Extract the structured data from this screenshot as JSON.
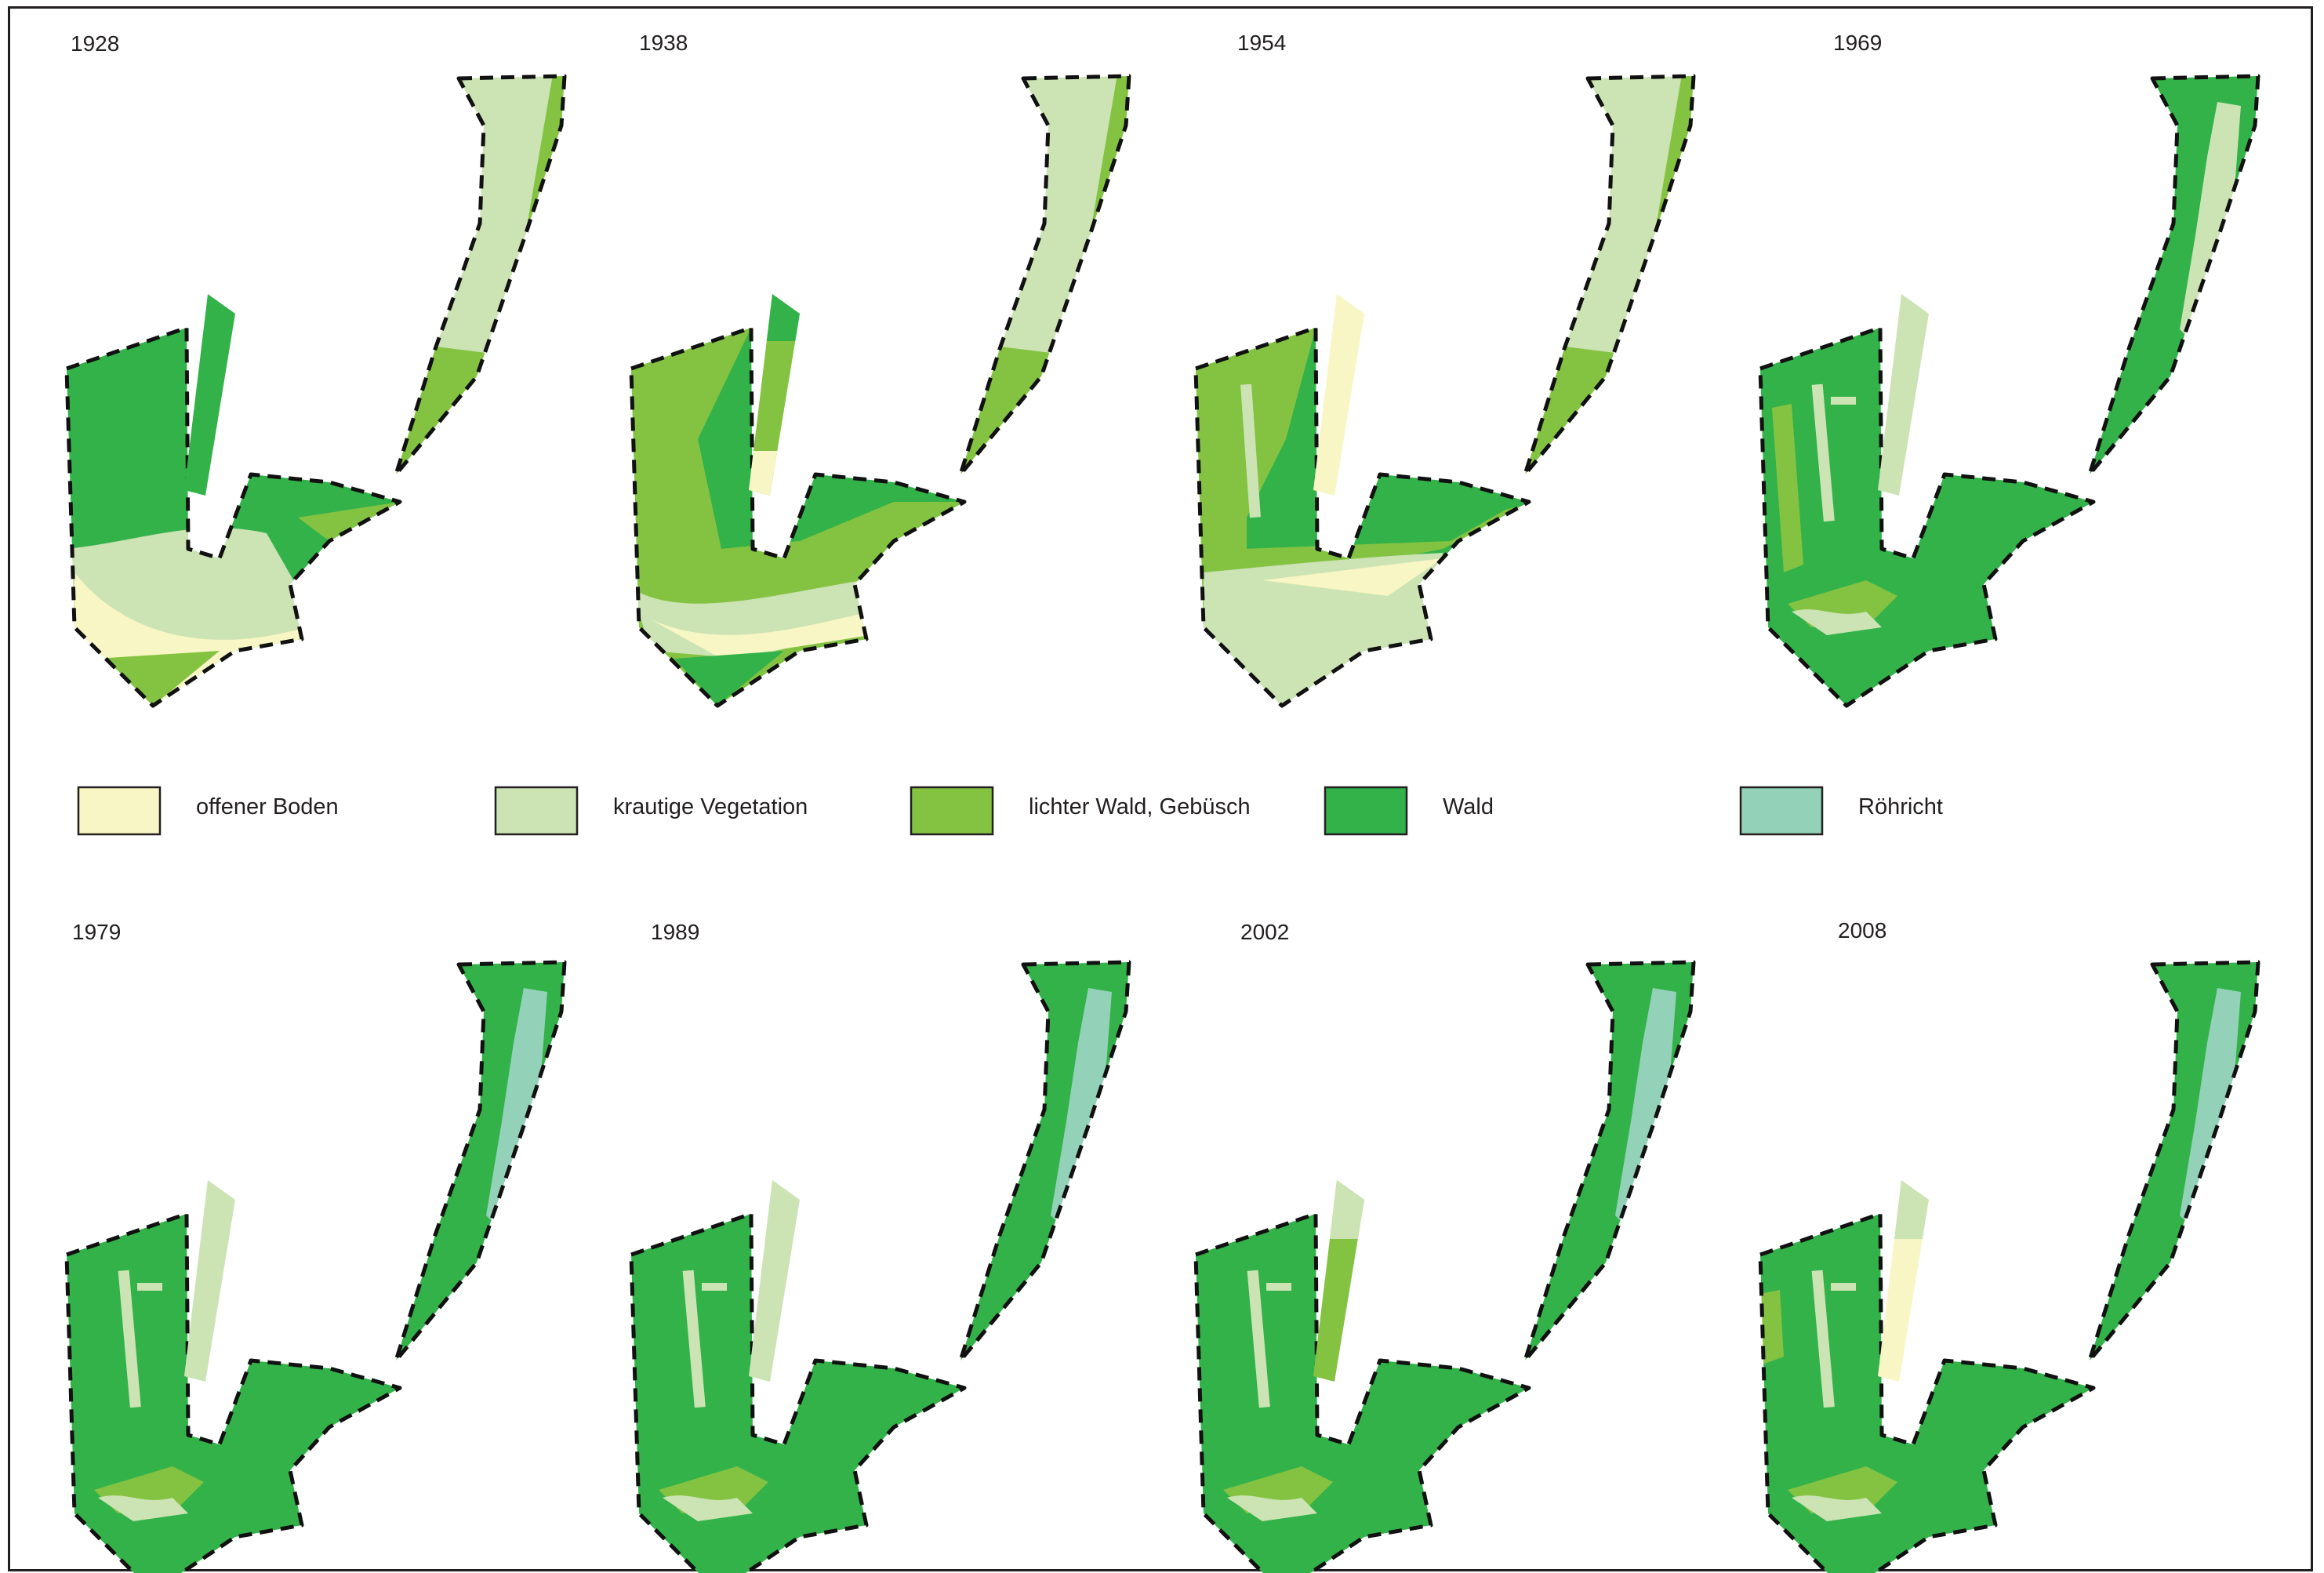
{
  "colors": {
    "offener_boden": "#f7f6c4",
    "krautige_vegetation": "#cce3b4",
    "lichter_wald": "#84c341",
    "wald": "#33b24a",
    "roehricht": "#93d1b8"
  },
  "legend": [
    {
      "key": "offener_boden",
      "label": "offener Boden",
      "color": "#f7f6c4"
    },
    {
      "key": "krautige_vegetation",
      "label": "krautige Vegetation",
      "color": "#cce3b4"
    },
    {
      "key": "lichter_wald",
      "label": "lichter Wald, Gebüsch",
      "color": "#84c341"
    },
    {
      "key": "wald",
      "label": "Wald",
      "color": "#33b24a"
    },
    {
      "key": "roehricht",
      "label": "Röhricht",
      "color": "#93d1b8"
    }
  ],
  "maps": [
    {
      "year": "1928",
      "strip": "wald",
      "north_base": "krautige_vegetation",
      "north_inner": null,
      "south_band": "lichter_wald"
    },
    {
      "year": "1938",
      "strip": "lichter_wald",
      "north_base": "krautige_vegetation",
      "north_inner": null,
      "south_band": "lichter_wald"
    },
    {
      "year": "1954",
      "strip": "offener_boden",
      "north_base": "krautige_vegetation",
      "north_inner": null,
      "south_band": "lichter_wald"
    },
    {
      "year": "1969",
      "strip": "krautige_vegetation",
      "north_base": "wald",
      "north_inner": "krautige_vegetation",
      "south_band": "wald"
    },
    {
      "year": "1979",
      "strip": "krautige_vegetation",
      "north_base": "wald",
      "north_inner": "roehricht",
      "south_band": "wald"
    },
    {
      "year": "1989",
      "strip": "krautige_vegetation",
      "north_base": "wald",
      "north_inner": "roehricht",
      "south_band": "wald"
    },
    {
      "year": "2002",
      "strip": "lichter_wald",
      "north_base": "wald",
      "north_inner": "roehricht",
      "south_band": "wald"
    },
    {
      "year": "2008",
      "strip": "offener_boden",
      "north_base": "wald",
      "north_inner": "roehricht",
      "south_band": "wald"
    }
  ]
}
